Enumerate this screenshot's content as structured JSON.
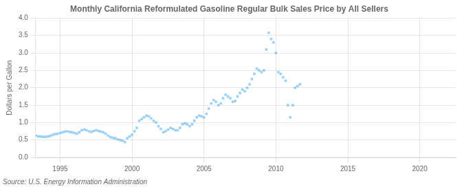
{
  "chart_data": {
    "type": "scatter",
    "title": "Monthly California Reformulated Gasoline Regular Bulk Sales Price by All Sellers",
    "ylabel": "Dollars per Gallon",
    "source": "Source: U.S. Energy Information Administration",
    "marker": "square",
    "grid": true,
    "xlim": [
      1993.3,
      2022.5
    ],
    "xticks": [
      1995,
      2000,
      2005,
      2010,
      2015,
      2020
    ],
    "ylim": [
      0.0,
      4.0
    ],
    "yticks": [
      {
        "value": 0,
        "label": "0.0"
      },
      0.5,
      {
        "value": 1,
        "label": "1.0"
      },
      1.5,
      {
        "value": 2,
        "label": "2.0"
      },
      2.5,
      {
        "value": 3,
        "label": "3.0"
      },
      3.5,
      {
        "value": 4,
        "label": "4.0"
      }
    ],
    "x": [
      1993.33,
      1993.5,
      1993.67,
      1993.83,
      1994.0,
      1994.17,
      1994.33,
      1994.5,
      1994.67,
      1994.83,
      1995.0,
      1995.17,
      1995.33,
      1995.5,
      1995.67,
      1995.83,
      1996.0,
      1996.17,
      1996.33,
      1996.5,
      1996.67,
      1996.83,
      1997.0,
      1997.17,
      1997.33,
      1997.5,
      1997.67,
      1997.83,
      1998.0,
      1998.17,
      1998.33,
      1998.5,
      1998.67,
      1998.83,
      1999.0,
      1999.17,
      1999.33,
      1999.5,
      1999.67,
      1999.83,
      2000.0,
      2000.17,
      2000.33,
      2000.5,
      2000.67,
      2000.83,
      2001.0,
      2001.17,
      2001.33,
      2001.5,
      2001.67,
      2001.83,
      2002.0,
      2002.17,
      2002.33,
      2002.5,
      2002.67,
      2002.83,
      2003.0,
      2003.17,
      2003.33,
      2003.5,
      2003.67,
      2003.83,
      2004.0,
      2004.17,
      2004.33,
      2004.5,
      2004.67,
      2004.83,
      2005.0,
      2005.17,
      2005.33,
      2005.5,
      2005.67,
      2005.83,
      2006.0,
      2006.17,
      2006.33,
      2006.5,
      2006.67,
      2006.83,
      2007.0,
      2007.17,
      2007.33,
      2007.5,
      2007.67,
      2007.83,
      2008.0,
      2008.17,
      2008.33,
      2008.5,
      2008.67,
      2008.83,
      2009.0,
      2009.17,
      2009.33,
      2009.5,
      2009.67,
      2009.83,
      2010.0,
      2010.17,
      2010.33,
      2010.5,
      2010.67,
      2010.83,
      2011.0,
      2011.17,
      2011.33,
      2011.5,
      2011.67
    ],
    "values": [
      0.62,
      0.6,
      0.6,
      0.59,
      0.59,
      0.6,
      0.62,
      0.65,
      0.67,
      0.68,
      0.7,
      0.72,
      0.74,
      0.75,
      0.73,
      0.72,
      0.7,
      0.68,
      0.72,
      0.78,
      0.8,
      0.78,
      0.75,
      0.73,
      0.76,
      0.78,
      0.76,
      0.74,
      0.72,
      0.68,
      0.62,
      0.58,
      0.56,
      0.55,
      0.52,
      0.5,
      0.48,
      0.44,
      0.55,
      0.6,
      0.65,
      0.75,
      0.85,
      1.05,
      1.1,
      1.15,
      1.2,
      1.18,
      1.12,
      1.05,
      1.0,
      0.9,
      0.82,
      0.72,
      0.75,
      0.8,
      0.85,
      0.82,
      0.78,
      0.78,
      0.85,
      0.95,
      0.98,
      0.95,
      0.9,
      0.95,
      1.05,
      1.15,
      1.2,
      1.18,
      1.15,
      1.25,
      1.4,
      1.55,
      1.65,
      1.6,
      1.5,
      1.55,
      1.7,
      1.8,
      1.75,
      1.7,
      1.6,
      1.62,
      1.75,
      1.85,
      1.95,
      1.9,
      2.0,
      2.1,
      2.25,
      2.4,
      2.55,
      2.5,
      2.45,
      2.5,
      3.1,
      3.58,
      3.4,
      3.3,
      3.0,
      2.45,
      2.4,
      2.3,
      2.2,
      1.5,
      1.15,
      1.5,
      2.0,
      2.05,
      2.1
    ]
  }
}
